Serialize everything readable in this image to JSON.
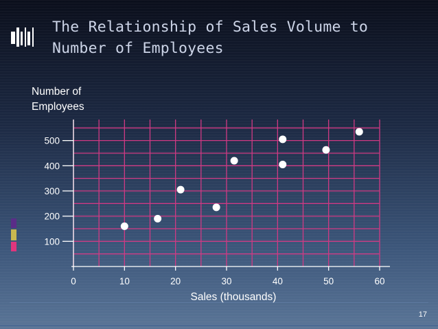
{
  "slide": {
    "title": "The Relationship of Sales Volume to Number of Employees",
    "page_number": "17"
  },
  "colors": {
    "grid": "#d03a84",
    "axis": "#ffffff",
    "points": "#ffffff"
  },
  "chart_data": {
    "type": "scatter",
    "xlabel": "Sales (thousands)",
    "ylabel": "Number of Employees",
    "xlim": [
      0,
      60
    ],
    "ylim": [
      0,
      550
    ],
    "xticks": [
      0,
      10,
      20,
      30,
      40,
      50,
      60
    ],
    "yticks": [
      100,
      200,
      300,
      400,
      500
    ],
    "grid": true,
    "points": [
      {
        "x": 10,
        "y": 160
      },
      {
        "x": 16.5,
        "y": 190
      },
      {
        "x": 21,
        "y": 305
      },
      {
        "x": 28,
        "y": 235
      },
      {
        "x": 31.5,
        "y": 420
      },
      {
        "x": 41,
        "y": 405
      },
      {
        "x": 41,
        "y": 505
      },
      {
        "x": 49.5,
        "y": 463
      },
      {
        "x": 56,
        "y": 535
      }
    ]
  }
}
